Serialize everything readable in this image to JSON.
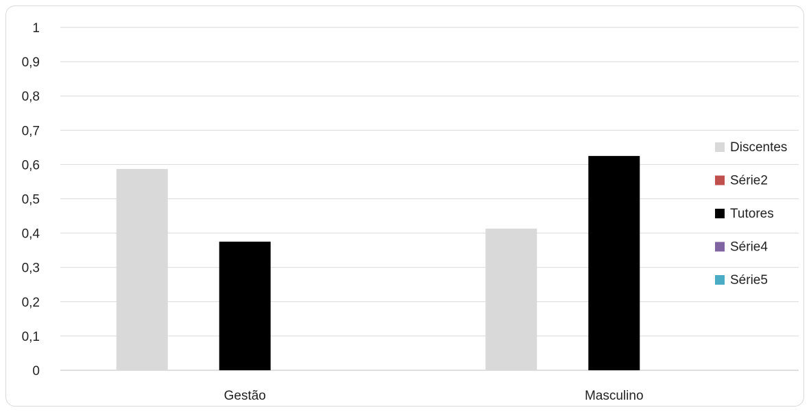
{
  "chart_data": {
    "type": "bar",
    "title": "",
    "xlabel": "",
    "ylabel": "",
    "categories": [
      "Gestão",
      "Masculino"
    ],
    "series": [
      {
        "name": "Discentes",
        "color": "#d9d9d9",
        "values": [
          0.587,
          0.413
        ]
      },
      {
        "name": "Série2",
        "color": "#c0504d",
        "values": [
          null,
          null
        ]
      },
      {
        "name": "Tutores",
        "color": "#000000",
        "values": [
          0.375,
          0.625
        ]
      },
      {
        "name": "Série4",
        "color": "#8064a2",
        "values": [
          null,
          null
        ]
      },
      {
        "name": "Série5",
        "color": "#4bacc6",
        "values": [
          null,
          null
        ]
      }
    ],
    "ylim": [
      0,
      1
    ],
    "yticks": [
      "0",
      "0,1",
      "0,2",
      "0,3",
      "0,4",
      "0,5",
      "0,6",
      "0,7",
      "0,8",
      "0,9",
      "1"
    ],
    "grid": true,
    "legend_position": "right"
  }
}
